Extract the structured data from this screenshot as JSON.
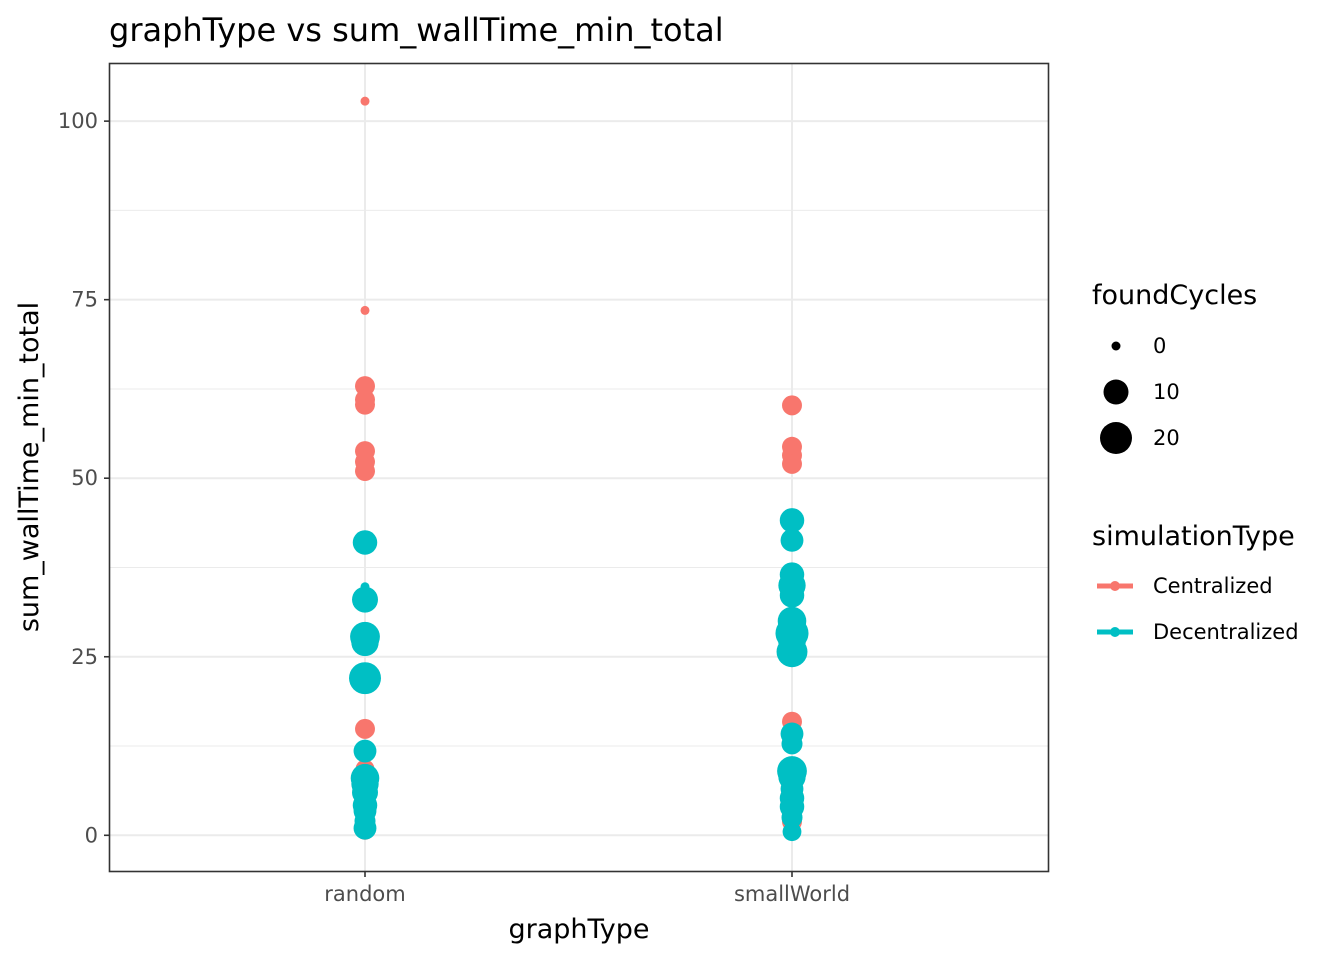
{
  "chart_data": {
    "type": "scatter",
    "title": "graphType  vs  sum_wallTime_min_total",
    "xlabel": "graphType",
    "ylabel": "sum_wallTime_min_total",
    "categories": [
      "random",
      "smallWorld"
    ],
    "ylim": [
      -5,
      108
    ],
    "yticks": [
      0,
      25,
      50,
      75,
      100
    ],
    "grid": true,
    "legend_placement": "right",
    "size_legend": {
      "title": "foundCycles",
      "values": [
        0,
        10,
        20
      ],
      "labels": [
        "0",
        "10",
        "20"
      ]
    },
    "color_legend": {
      "title": "simulationType",
      "entries": [
        {
          "name": "Centralized",
          "color": "#F8766D"
        },
        {
          "name": "Decentralized",
          "color": "#00BFC4"
        }
      ]
    },
    "series": [
      {
        "name": "Centralized",
        "color": "#F8766D",
        "points": [
          {
            "x": "random",
            "y": 102.8,
            "size": 0
          },
          {
            "x": "random",
            "y": 73.5,
            "size": 0
          },
          {
            "x": "random",
            "y": 62.9,
            "size": 5
          },
          {
            "x": "random",
            "y": 61.0,
            "size": 5
          },
          {
            "x": "random",
            "y": 60.3,
            "size": 5
          },
          {
            "x": "random",
            "y": 53.8,
            "size": 5
          },
          {
            "x": "random",
            "y": 52.3,
            "size": 5
          },
          {
            "x": "random",
            "y": 51.0,
            "size": 5
          },
          {
            "x": "random",
            "y": 14.9,
            "size": 5
          },
          {
            "x": "random",
            "y": 9.3,
            "size": 4
          },
          {
            "x": "random",
            "y": 1.8,
            "size": 4
          },
          {
            "x": "random",
            "y": 0.6,
            "size": 3
          },
          {
            "x": "smallWorld",
            "y": 60.2,
            "size": 5
          },
          {
            "x": "smallWorld",
            "y": 54.4,
            "size": 5
          },
          {
            "x": "smallWorld",
            "y": 53.2,
            "size": 5
          },
          {
            "x": "smallWorld",
            "y": 52.0,
            "size": 5
          },
          {
            "x": "smallWorld",
            "y": 15.9,
            "size": 5
          },
          {
            "x": "smallWorld",
            "y": 14.1,
            "size": 5
          },
          {
            "x": "smallWorld",
            "y": 1.9,
            "size": 5
          }
        ]
      },
      {
        "name": "Decentralized",
        "color": "#00BFC4",
        "points": [
          {
            "x": "random",
            "y": 41.0,
            "size": 10
          },
          {
            "x": "random",
            "y": 40.0,
            "size": 0
          },
          {
            "x": "random",
            "y": 34.8,
            "size": 0
          },
          {
            "x": "random",
            "y": 33.0,
            "size": 12
          },
          {
            "x": "random",
            "y": 27.8,
            "size": 18
          },
          {
            "x": "random",
            "y": 27.0,
            "size": 14
          },
          {
            "x": "random",
            "y": 22.0,
            "size": 22
          },
          {
            "x": "random",
            "y": 11.8,
            "size": 8
          },
          {
            "x": "random",
            "y": 8.0,
            "size": 16
          },
          {
            "x": "random",
            "y": 7.2,
            "size": 14
          },
          {
            "x": "random",
            "y": 6.0,
            "size": 12
          },
          {
            "x": "random",
            "y": 4.2,
            "size": 10
          },
          {
            "x": "random",
            "y": 3.4,
            "size": 8
          },
          {
            "x": "random",
            "y": 2.0,
            "size": 6
          },
          {
            "x": "random",
            "y": 1.0,
            "size": 8
          },
          {
            "x": "smallWorld",
            "y": 44.1,
            "size": 10
          },
          {
            "x": "smallWorld",
            "y": 41.3,
            "size": 8
          },
          {
            "x": "smallWorld",
            "y": 36.5,
            "size": 10
          },
          {
            "x": "smallWorld",
            "y": 35.0,
            "size": 14
          },
          {
            "x": "smallWorld",
            "y": 33.6,
            "size": 10
          },
          {
            "x": "smallWorld",
            "y": 30.0,
            "size": 16
          },
          {
            "x": "smallWorld",
            "y": 28.3,
            "size": 24
          },
          {
            "x": "smallWorld",
            "y": 27.0,
            "size": 14
          },
          {
            "x": "smallWorld",
            "y": 25.7,
            "size": 20
          },
          {
            "x": "smallWorld",
            "y": 14.2,
            "size": 8
          },
          {
            "x": "smallWorld",
            "y": 12.8,
            "size": 6
          },
          {
            "x": "smallWorld",
            "y": 9.0,
            "size": 18
          },
          {
            "x": "smallWorld",
            "y": 8.2,
            "size": 14
          },
          {
            "x": "smallWorld",
            "y": 6.5,
            "size": 8
          },
          {
            "x": "smallWorld",
            "y": 5.2,
            "size": 10
          },
          {
            "x": "smallWorld",
            "y": 4.0,
            "size": 10
          },
          {
            "x": "smallWorld",
            "y": 2.5,
            "size": 6
          },
          {
            "x": "smallWorld",
            "y": 0.5,
            "size": 4
          }
        ]
      }
    ]
  }
}
